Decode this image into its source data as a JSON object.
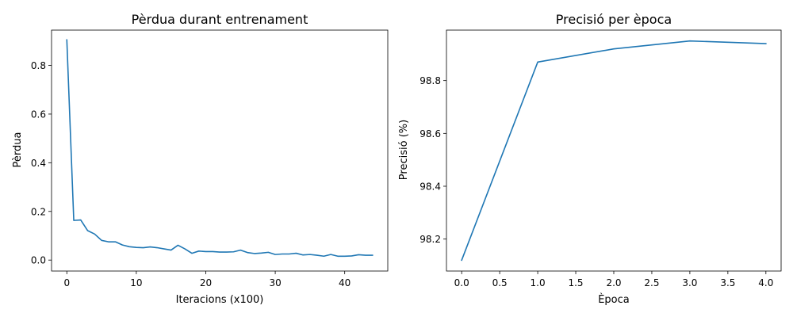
{
  "colors": {
    "line": "#1f77b4",
    "axes": "#000000",
    "background": "#ffffff"
  },
  "chart_data": [
    {
      "type": "line",
      "title": "Pèrdua durant entrenament",
      "xlabel": "Iteracions (x100)",
      "ylabel": "Pèrdua",
      "xlim": [
        -2.2,
        46.2
      ],
      "ylim": [
        -0.045,
        0.945
      ],
      "xticks": [
        0,
        10,
        20,
        30,
        40
      ],
      "xtick_labels": [
        "0",
        "10",
        "20",
        "30",
        "40"
      ],
      "yticks": [
        0.0,
        0.2,
        0.4,
        0.6,
        0.8
      ],
      "ytick_labels": [
        "0.0",
        "0.2",
        "0.4",
        "0.6",
        "0.8"
      ],
      "grid": false,
      "series": [
        {
          "x": [
            0,
            1,
            2,
            3,
            4,
            5,
            6,
            7,
            8,
            9,
            10,
            11,
            12,
            13,
            14,
            15,
            16,
            17,
            18,
            19,
            20,
            21,
            22,
            23,
            24,
            25,
            26,
            27,
            28,
            29,
            30,
            31,
            32,
            33,
            34,
            35,
            36,
            37,
            38,
            39,
            40,
            41,
            42,
            43,
            44
          ],
          "values": [
            0.905,
            0.163,
            0.165,
            0.121,
            0.107,
            0.081,
            0.075,
            0.075,
            0.062,
            0.055,
            0.052,
            0.051,
            0.054,
            0.051,
            0.046,
            0.041,
            0.061,
            0.046,
            0.028,
            0.037,
            0.035,
            0.035,
            0.033,
            0.033,
            0.034,
            0.041,
            0.031,
            0.027,
            0.029,
            0.032,
            0.023,
            0.025,
            0.025,
            0.028,
            0.021,
            0.023,
            0.02,
            0.016,
            0.023,
            0.016,
            0.016,
            0.017,
            0.022,
            0.02,
            0.02
          ]
        }
      ]
    },
    {
      "type": "line",
      "title": "Precisió per època",
      "xlabel": "Època",
      "ylabel": "Precisió (%)",
      "xlim": [
        -0.2,
        4.2
      ],
      "ylim": [
        98.079,
        98.991
      ],
      "xticks": [
        0.0,
        0.5,
        1.0,
        1.5,
        2.0,
        2.5,
        3.0,
        3.5,
        4.0
      ],
      "xtick_labels": [
        "0.0",
        "0.5",
        "1.0",
        "1.5",
        "2.0",
        "2.5",
        "3.0",
        "3.5",
        "4.0"
      ],
      "yticks": [
        98.2,
        98.4,
        98.6,
        98.8
      ],
      "ytick_labels": [
        "98.2",
        "98.4",
        "98.6",
        "98.8"
      ],
      "grid": false,
      "series": [
        {
          "x": [
            0,
            1,
            2,
            3,
            4
          ],
          "values": [
            98.12,
            98.87,
            98.92,
            98.95,
            98.94
          ]
        }
      ]
    }
  ]
}
